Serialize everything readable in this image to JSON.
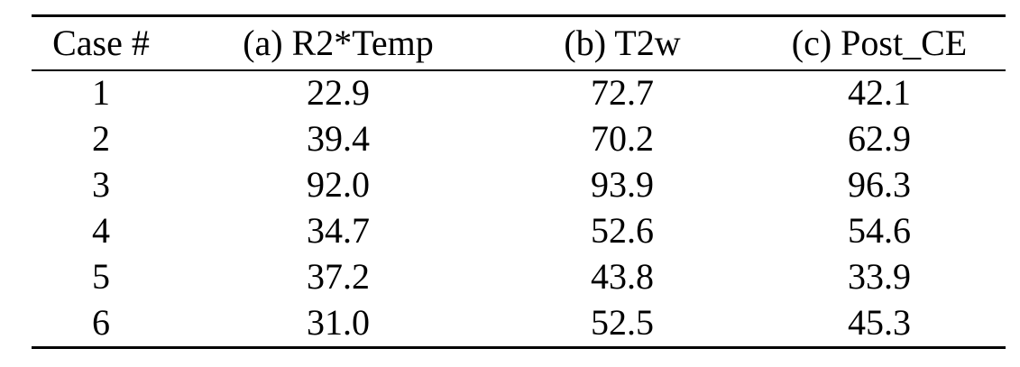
{
  "table": {
    "header": [
      "Case #",
      "(a) R2*Temp",
      "(b) T2w",
      "(c) Post_CE"
    ],
    "rows": [
      [
        "1",
        "22.9",
        "72.7",
        "42.1"
      ],
      [
        "2",
        "39.4",
        "70.2",
        "62.9"
      ],
      [
        "3",
        "92.0",
        "93.9",
        "96.3"
      ],
      [
        "4",
        "34.7",
        "52.6",
        "54.6"
      ],
      [
        "5",
        "37.2",
        "43.8",
        "33.9"
      ],
      [
        "6",
        "31.0",
        "52.5",
        "45.3"
      ]
    ]
  }
}
